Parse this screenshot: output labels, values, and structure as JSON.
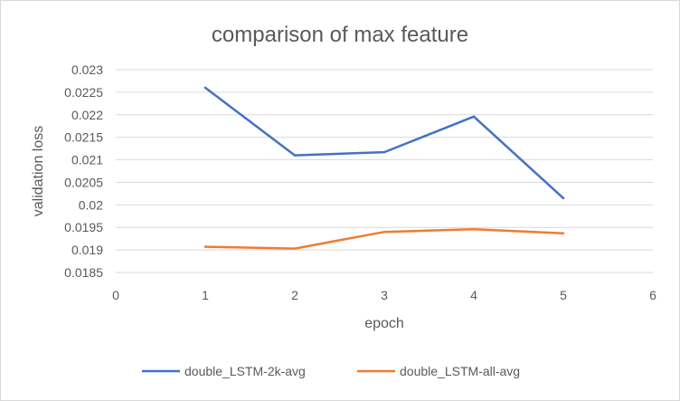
{
  "chart_data": {
    "type": "scatter",
    "title": "comparison of max feature",
    "xlabel": "epoch",
    "ylabel": "validation loss",
    "xlim": [
      0,
      6
    ],
    "ylim": [
      0.0185,
      0.023
    ],
    "x_ticks": [
      "0",
      "1",
      "2",
      "3",
      "4",
      "5",
      "6"
    ],
    "y_ticks": [
      "0.0185",
      "0.019",
      "0.0195",
      "0.02",
      "0.0205",
      "0.021",
      "0.0215",
      "0.022",
      "0.0225",
      "0.023"
    ],
    "grid": "horizontal",
    "legend_position": "bottom",
    "series": [
      {
        "name": "double_LSTM-2k-avg",
        "color": "#4472c4",
        "x": [
          1,
          2,
          3,
          4,
          5
        ],
        "y": [
          0.0226,
          0.0211,
          0.02117,
          0.02196,
          0.02015
        ]
      },
      {
        "name": "double_LSTM-all-avg",
        "color": "#ed7d31",
        "x": [
          1,
          2,
          3,
          4,
          5
        ],
        "y": [
          0.01907,
          0.01903,
          0.0194,
          0.01946,
          0.01937
        ]
      }
    ]
  }
}
